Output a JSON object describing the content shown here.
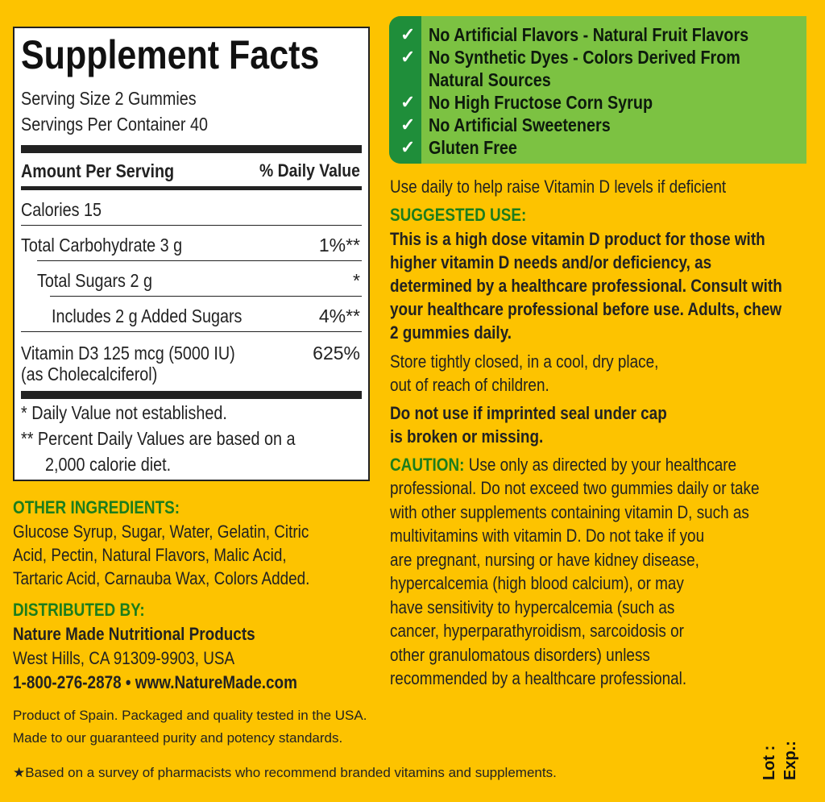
{
  "facts": {
    "title": "Supplement Facts",
    "serving_size": "Serving Size 2 Gummies",
    "servings": "Servings Per Container 40",
    "amount_header": "Amount Per Serving",
    "dv_header": "% Daily Value",
    "rows": [
      {
        "name": "Calories  15",
        "dv": ""
      },
      {
        "name": "Total Carbohydrate  3 g",
        "dv": "1%**"
      },
      {
        "name": "Total Sugars  2 g",
        "dv": "*"
      },
      {
        "name": "Includes  2 g Added Sugars",
        "dv": "4%**"
      },
      {
        "name": "Vitamin D3  125 mcg (5000 IU)",
        "dv": "625%"
      }
    ],
    "vitd_sub": "(as Cholecalciferol)",
    "foot1": "*  Daily Value not established.",
    "foot2": "**  Percent Daily Values are based on a",
    "foot3": "2,000 calorie diet."
  },
  "claims": [
    "No Artificial Flavors - Natural Fruit Flavors",
    "No Synthetic Dyes - Colors Derived From",
    "Natural Sources",
    "No High Fructose Corn Syrup",
    "No Artificial Sweeteners",
    "Gluten Free"
  ],
  "colors": {
    "background": "#fdc300",
    "green_heading": "#1c7d1c",
    "claims_bg": "#7cc242",
    "claims_strip": "#1f8e3a"
  },
  "use_daily": "Use daily to help raise Vitamin D levels if deficient",
  "suggested": {
    "heading": "SUGGESTED USE:",
    "lines": [
      "This is a high dose vitamin D product for those with",
      "higher vitamin D needs and/or deficiency, as",
      "determined by a healthcare professional. Consult with",
      "your healthcare professional before use. Adults, chew",
      "2 gummies daily."
    ]
  },
  "store": [
    "Store tightly closed, in a cool, dry place,",
    "out of reach of children."
  ],
  "seal": [
    "Do not use if imprinted seal under cap",
    "is broken or missing."
  ],
  "caution": {
    "heading": "CAUTION:",
    "first": " Use only as directed by your healthcare",
    "lines": [
      "professional. Do not exceed two gummies daily or take",
      "with other supplements containing vitamin D, such as",
      "multivitamins with vitamin D.  Do not take if you",
      "are pregnant, nursing or have kidney disease,",
      "hypercalcemia (high blood calcium), or may",
      "have sensitivity to hypercalcemia (such as",
      "cancer, hyperparathyroidism, sarcoidosis or",
      "other granulomatous disorders) unless",
      "recommended by a healthcare professional."
    ]
  },
  "ingredients": {
    "heading": "OTHER INGREDIENTS:",
    "lines": [
      "Glucose Syrup, Sugar, Water, Gelatin, Citric",
      "Acid, Pectin, Natural Flavors, Malic Acid,",
      "Tartaric Acid, Carnauba Wax, Colors Added."
    ]
  },
  "distributor": {
    "heading": "DISTRIBUTED BY:",
    "name": "Nature Made Nutritional Products",
    "address": "West Hills, CA 91309-9903, USA",
    "contact": "1-800-276-2878 • www.NatureMade.com"
  },
  "origin": [
    "Product of Spain. Packaged and quality tested in the USA.",
    "Made to our guaranteed purity and potency standards."
  ],
  "survey": "★Based on a survey of pharmacists who recommend branded vitamins and supplements.",
  "lot": "Lot :",
  "exp": "Exp.:"
}
